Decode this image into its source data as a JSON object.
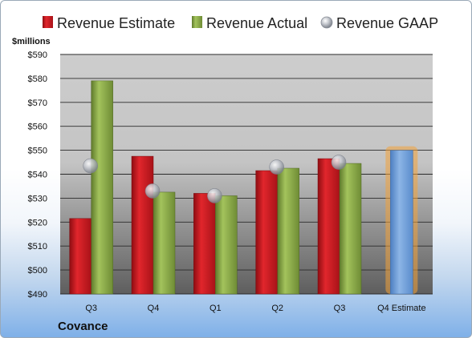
{
  "chart_data": {
    "type": "bar",
    "title": "",
    "company": "Covance",
    "y_unit": "$millions",
    "categories": [
      "Q3",
      "Q4",
      "Q1",
      "Q2",
      "Q3",
      "Q4 Estimate"
    ],
    "series": [
      {
        "name": "Revenue Estimate",
        "type": "bar",
        "color": "#c8161d",
        "values": [
          521.5,
          547.5,
          532,
          541.5,
          546.5,
          null
        ]
      },
      {
        "name": "Revenue Actual",
        "type": "bar",
        "color": "#8fae4a",
        "values": [
          579,
          532.5,
          531,
          542.5,
          544.5,
          null
        ]
      },
      {
        "name": "Revenue GAAP",
        "type": "marker",
        "color": "#b8bcc4",
        "values": [
          543.5,
          533,
          531,
          543,
          545,
          null
        ]
      },
      {
        "name": "Q4 Estimate",
        "type": "highlight-bar",
        "color": "#6f9fd8",
        "values": [
          null,
          null,
          null,
          null,
          null,
          550
        ]
      }
    ],
    "y_ticks": [
      "$490",
      "$500",
      "$510",
      "$520",
      "$530",
      "$540",
      "$550",
      "$560",
      "$570",
      "$580",
      "$590"
    ],
    "ylim": [
      490,
      590
    ],
    "grid": true,
    "legend_position": "top"
  }
}
